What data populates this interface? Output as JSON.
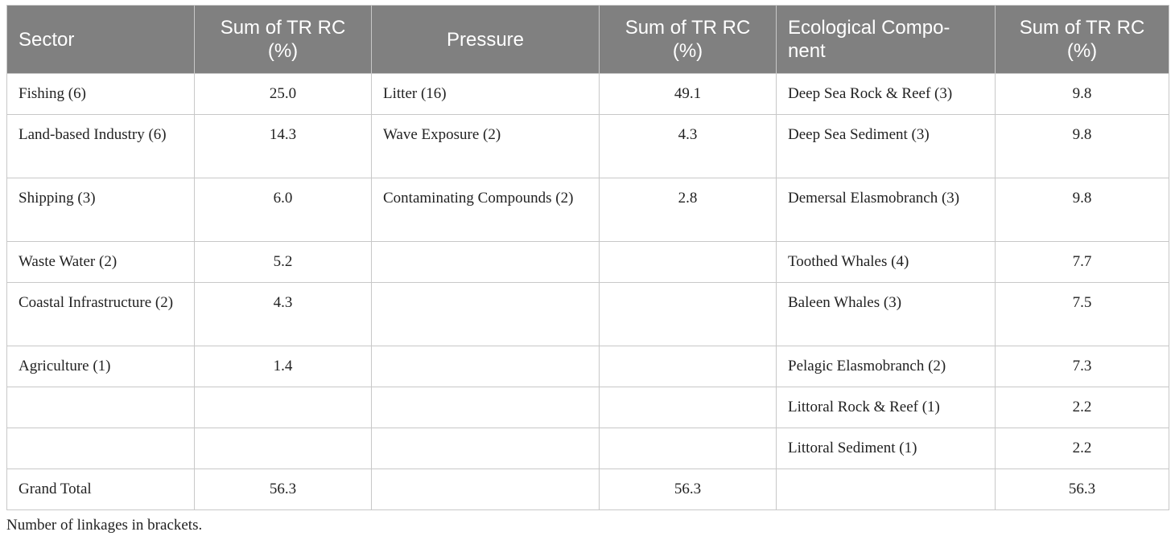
{
  "table": {
    "headers": [
      "Sector",
      "Sum of TR RC (%)",
      "Pressure",
      "Sum of TR RC (%)",
      "Ecological Compo-nent",
      "Sum of TR RC (%)"
    ],
    "rows": [
      [
        "Fishing (6)",
        "25.0",
        "Litter (16)",
        "49.1",
        "Deep Sea Rock & Reef (3)",
        "9.8"
      ],
      [
        "Land-based Industry (6)",
        "14.3",
        "Wave Exposure (2)",
        "4.3",
        "Deep Sea Sediment (3)",
        "9.8"
      ],
      [
        "Shipping (3)",
        "6.0",
        "Contaminating Compounds (2)",
        "2.8",
        "Demersal Elasmobranch (3)",
        "9.8"
      ],
      [
        "Waste Water (2)",
        "5.2",
        "",
        "",
        "Toothed Whales (4)",
        "7.7"
      ],
      [
        "Coastal Infrastructure (2)",
        "4.3",
        "",
        "",
        "Baleen Whales (3)",
        "7.5"
      ],
      [
        "Agriculture (1)",
        "1.4",
        "",
        "",
        "Pelagic Elasmobranch (2)",
        "7.3"
      ],
      [
        "",
        "",
        "",
        "",
        "Littoral Rock & Reef (1)",
        "2.2"
      ],
      [
        "",
        "",
        "",
        "",
        "Littoral Sediment (1)",
        "2.2"
      ],
      [
        "Grand Total",
        "56.3",
        "",
        "56.3",
        "",
        "56.3"
      ]
    ]
  },
  "footnote": "Number of linkages in brackets."
}
